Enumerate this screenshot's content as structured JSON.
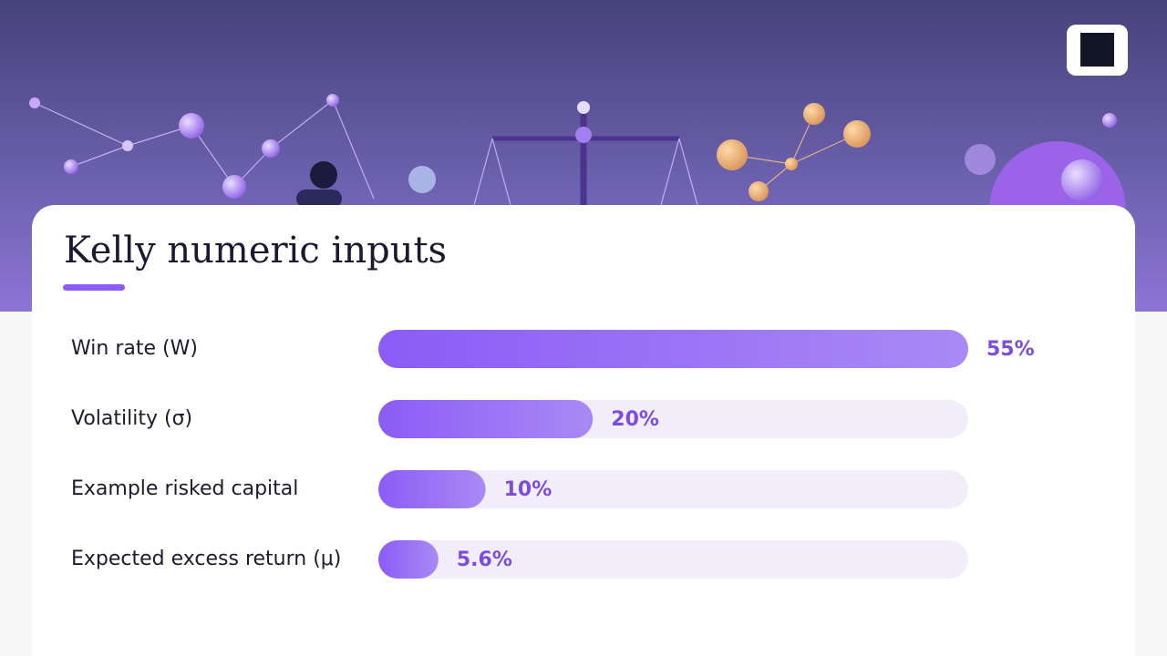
{
  "chart_data": {
    "type": "bar",
    "orientation": "horizontal",
    "title": "Kelly numeric inputs",
    "categories": [
      "Win rate (W)",
      "Volatility (σ)",
      "Example risked capital",
      "Expected excess return (μ)"
    ],
    "values": [
      55,
      20,
      10,
      5.6
    ],
    "value_labels": [
      "55%",
      "20%",
      "10%",
      "5.6%"
    ],
    "xlim": [
      0,
      55
    ],
    "color": "#8b5cf6",
    "track_color": "#f1edfb",
    "label_color": "#7c4ddb"
  }
}
